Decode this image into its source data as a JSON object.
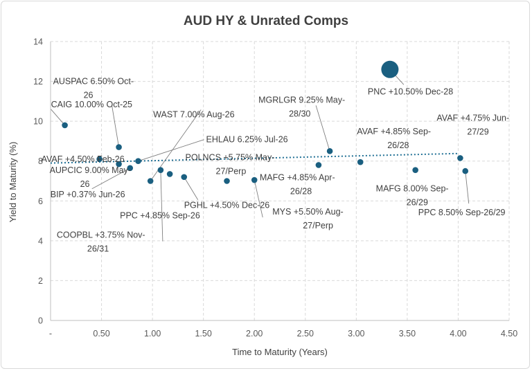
{
  "chart_data": {
    "type": "scatter",
    "title": "AUD HY & Unrated Comps",
    "xlabel": "Time to Maturity (Years)",
    "ylabel": "Yield to Maturity (%)",
    "xlim": [
      0,
      4.5
    ],
    "ylim": [
      0,
      14
    ],
    "x_ticks": [
      {
        "value": 0,
        "label": "-"
      },
      {
        "value": 0.5,
        "label": "0.50"
      },
      {
        "value": 1.0,
        "label": "1.00"
      },
      {
        "value": 1.5,
        "label": "1.50"
      },
      {
        "value": 2.0,
        "label": "2.00"
      },
      {
        "value": 2.5,
        "label": "2.50"
      },
      {
        "value": 3.0,
        "label": "3.00"
      },
      {
        "value": 3.5,
        "label": "3.50"
      },
      {
        "value": 4.0,
        "label": "4.00"
      },
      {
        "value": 4.5,
        "label": "4.50"
      }
    ],
    "y_ticks": [
      0,
      2,
      4,
      6,
      8,
      10,
      12,
      14
    ],
    "grid": true,
    "marker_color": "#1a5f80",
    "trendline": {
      "from": [
        0,
        7.9
      ],
      "to": [
        4.0,
        8.38
      ],
      "color": "#1f6f94"
    },
    "points": [
      {
        "x": 0.14,
        "y": 9.8,
        "label": [
          "CAIG 10.00% Oct-25"
        ]
      },
      {
        "x": 0.48,
        "y": 8.1,
        "label": [
          "AVAF +4.50% Feb-26"
        ]
      },
      {
        "x": 0.67,
        "y": 8.7,
        "label": [
          "AUSPAC 6.50% Oct-",
          "26"
        ]
      },
      {
        "x": 0.67,
        "y": 7.85,
        "label": [
          "AUPCIC 9.00% May-",
          "26"
        ]
      },
      {
        "x": 0.78,
        "y": 7.65,
        "label": [
          "BIP +0.37% Jun-26"
        ]
      },
      {
        "x": 0.86,
        "y": 8.0,
        "label": [
          "EHLAU 6.25% Jul-26"
        ]
      },
      {
        "x": 0.98,
        "y": 7.0,
        "label": [
          "WAST 7.00% Aug-26"
        ]
      },
      {
        "x": 1.08,
        "y": 7.55,
        "label": [
          "COOPBL +3.75% Nov-",
          "26/31"
        ]
      },
      {
        "x": 1.17,
        "y": 7.35,
        "label": [
          "PPC +4.85% Sep-26"
        ]
      },
      {
        "x": 1.31,
        "y": 7.2,
        "label": [
          "PGHL +4.50% Dec-26"
        ]
      },
      {
        "x": 1.73,
        "y": 7.0,
        "label": [
          "POLNCS +5.75% May-",
          "27/Perp"
        ]
      },
      {
        "x": 2.0,
        "y": 7.05,
        "label": [
          "MYS +5.50% Aug-",
          "27/Perp"
        ]
      },
      {
        "x": 2.63,
        "y": 7.8,
        "label": [
          "MAFG +4.85% Apr-",
          "26/28"
        ]
      },
      {
        "x": 2.74,
        "y": 8.5,
        "label": [
          "MGRLGR 9.25% May-",
          "28/30"
        ]
      },
      {
        "x": 3.04,
        "y": 7.95,
        "label": [
          "AVAF +4.85% Sep-",
          "26/28"
        ]
      },
      {
        "x": 3.33,
        "y": 12.6,
        "size": "large",
        "label": [
          "PNC +10.50% Dec-28"
        ]
      },
      {
        "x": 3.58,
        "y": 7.55,
        "label": [
          "MAFG 8.00% Sep-",
          "26/29"
        ]
      },
      {
        "x": 4.02,
        "y": 8.15,
        "label": [
          "AVAF +4.75% Jun-",
          "27/29"
        ]
      },
      {
        "x": 4.07,
        "y": 7.5,
        "label": [
          "PPC 8.50% Sep-26/29"
        ]
      }
    ]
  }
}
